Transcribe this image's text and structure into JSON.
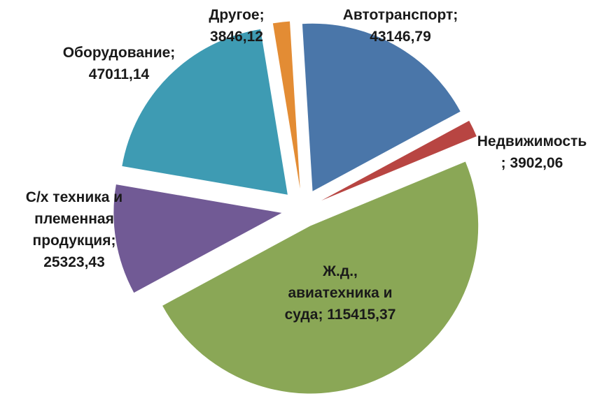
{
  "chart_data": {
    "type": "pie",
    "exploded": true,
    "slices": [
      {
        "name": "Автотранспорт",
        "value": 43146.79,
        "label_lines": [
          "Автотранспорт;",
          "43146,79"
        ],
        "color": "#4a76a9"
      },
      {
        "name": "Недвижимость",
        "value": 3902.06,
        "label_lines": [
          "Недвижимость",
          "; 3902,06"
        ],
        "color": "#b84542"
      },
      {
        "name": "Ж.д., авиатехника и суда",
        "value": 115415.37,
        "label_lines": [
          "Ж.д.,",
          "авиатехника и",
          "суда; 115415,37"
        ],
        "color": "#8aa756"
      },
      {
        "name": "С/х техника и племенная продукция",
        "value": 25323.43,
        "label_lines": [
          "С/х техника и",
          "племенная",
          "продукция;",
          "25323,43"
        ],
        "color": "#715a95"
      },
      {
        "name": "Оборудование",
        "value": 47011.14,
        "label_lines": [
          "Оборудование;",
          "47011,14"
        ],
        "color": "#3e9bb3"
      },
      {
        "name": "Другое",
        "value": 3846.12,
        "label_lines": [
          "Другое;",
          "3846,12"
        ],
        "color": "#e38c34"
      }
    ]
  }
}
